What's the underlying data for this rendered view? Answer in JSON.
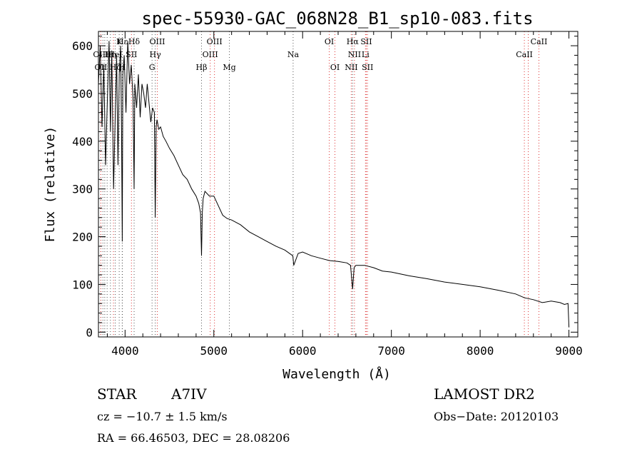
{
  "chart_data": {
    "type": "line",
    "title": "spec-55930-GAC_068N28_B1_sp10-083.fits",
    "xlabel": "Wavelength (Å)",
    "ylabel": "Flux (relative)",
    "xlim": [
      3700,
      9100
    ],
    "ylim": [
      -10,
      630
    ],
    "xticks": [
      4000,
      5000,
      6000,
      7000,
      8000,
      9000
    ],
    "yticks": [
      0,
      100,
      200,
      300,
      400,
      500,
      600
    ],
    "grid": false,
    "series": [
      {
        "values_x": [
          3700,
          3720,
          3740,
          3760,
          3780,
          3800,
          3820,
          3835,
          3850,
          3870,
          3889,
          3905,
          3920,
          3935,
          3950,
          3960,
          3968,
          3975,
          3990,
          4010,
          4030,
          4050,
          4070,
          4090,
          4102,
          4110,
          4130,
          4150,
          4170,
          4190,
          4210,
          4230,
          4250,
          4270,
          4290,
          4310,
          4330,
          4340,
          4350,
          4360,
          4380,
          4400,
          4430,
          4460,
          4500,
          4550,
          4600,
          4650,
          4700,
          4750,
          4800,
          4830,
          4850,
          4861,
          4870,
          4880,
          4900,
          4950,
          5000,
          5050,
          5100,
          5150,
          5200,
          5300,
          5400,
          5500,
          5600,
          5700,
          5800,
          5890,
          5900,
          5950,
          6000,
          6100,
          6200,
          6300,
          6400,
          6500,
          6540,
          6563,
          6580,
          6600,
          6700,
          6800,
          6900,
          7000,
          7200,
          7400,
          7600,
          7800,
          8000,
          8200,
          8400,
          8500,
          8600,
          8700,
          8800,
          8900,
          8950,
          8990,
          9000
        ],
        "values_y": [
          520,
          600,
          430,
          560,
          350,
          480,
          610,
          420,
          590,
          300,
          450,
          580,
          350,
          540,
          600,
          420,
          190,
          540,
          580,
          460,
          610,
          520,
          560,
          490,
          300,
          520,
          470,
          540,
          450,
          520,
          500,
          470,
          520,
          480,
          440,
          470,
          460,
          240,
          430,
          445,
          425,
          430,
          410,
          400,
          385,
          370,
          350,
          330,
          320,
          300,
          285,
          270,
          250,
          160,
          250,
          280,
          295,
          285,
          285,
          265,
          245,
          238,
          235,
          225,
          210,
          200,
          190,
          180,
          172,
          160,
          140,
          165,
          168,
          160,
          155,
          150,
          148,
          145,
          140,
          90,
          135,
          140,
          140,
          135,
          128,
          126,
          118,
          112,
          105,
          100,
          95,
          88,
          80,
          72,
          68,
          62,
          65,
          62,
          58,
          60,
          10
        ]
      }
    ],
    "line_labels": [
      {
        "text": "Hε",
        "x": 3970,
        "row": 0
      },
      {
        "text": "K",
        "x": 3934,
        "row": 0
      },
      {
        "text": "Hδ",
        "x": 4102,
        "row": 0
      },
      {
        "text": "OIII",
        "x": 4363,
        "row": 0
      },
      {
        "text": "OIII",
        "x": 5007,
        "row": 0
      },
      {
        "text": "OI",
        "x": 6300,
        "row": 0
      },
      {
        "text": "Hα",
        "x": 6563,
        "row": 0
      },
      {
        "text": "SII",
        "x": 6717,
        "row": 0
      },
      {
        "text": "CaII",
        "x": 8662,
        "row": 0
      },
      {
        "text": "OIII",
        "x": 3727,
        "row": 1
      },
      {
        "text": "Hη",
        "x": 3835,
        "row": 1
      },
      {
        "text": "HeI",
        "x": 3889,
        "row": 1
      },
      {
        "text": "SII",
        "x": 4072,
        "row": 1
      },
      {
        "text": "Hγ",
        "x": 4340,
        "row": 1
      },
      {
        "text": "OIII",
        "x": 4959,
        "row": 1
      },
      {
        "text": "Na",
        "x": 5893,
        "row": 1
      },
      {
        "text": "NII",
        "x": 6584,
        "row": 1
      },
      {
        "text": "Li",
        "x": 6708,
        "row": 1
      },
      {
        "text": "CaII",
        "x": 8498,
        "row": 1
      },
      {
        "text": "OII",
        "x": 3727,
        "row": 2
      },
      {
        "text": "Hζ",
        "x": 3889,
        "row": 2
      },
      {
        "text": "H",
        "x": 3968,
        "row": 2
      },
      {
        "text": "G",
        "x": 4304,
        "row": 2
      },
      {
        "text": "Hβ",
        "x": 4861,
        "row": 2
      },
      {
        "text": "Mg",
        "x": 5175,
        "row": 2
      },
      {
        "text": "OI",
        "x": 6364,
        "row": 2
      },
      {
        "text": "NII",
        "x": 6548,
        "row": 2
      },
      {
        "text": "SII",
        "x": 6731,
        "row": 2
      }
    ],
    "black_lines": [
      3727,
      3750,
      3771,
      3798,
      3835,
      3889,
      3934,
      3968,
      3970,
      4102,
      4304,
      4340,
      4861,
      5175,
      5893,
      6563
    ],
    "red_lines": [
      3727,
      3869,
      4072,
      4363,
      4959,
      5007,
      6300,
      6364,
      6548,
      6584,
      6708,
      6717,
      6731,
      8498,
      8542,
      8662
    ]
  },
  "info": {
    "object_class": "STAR",
    "subclass": "A7IV",
    "survey": "LAMOST DR2",
    "cz": "cz = −10.7 ± 1.5 km/s",
    "obs_date": "Obs−Date: 20120103",
    "coords": "RA =  66.46503, DEC =  28.08206"
  },
  "colors": {
    "spectrum": "#000000",
    "line_black": "#555555",
    "line_red": "#dd3333"
  }
}
